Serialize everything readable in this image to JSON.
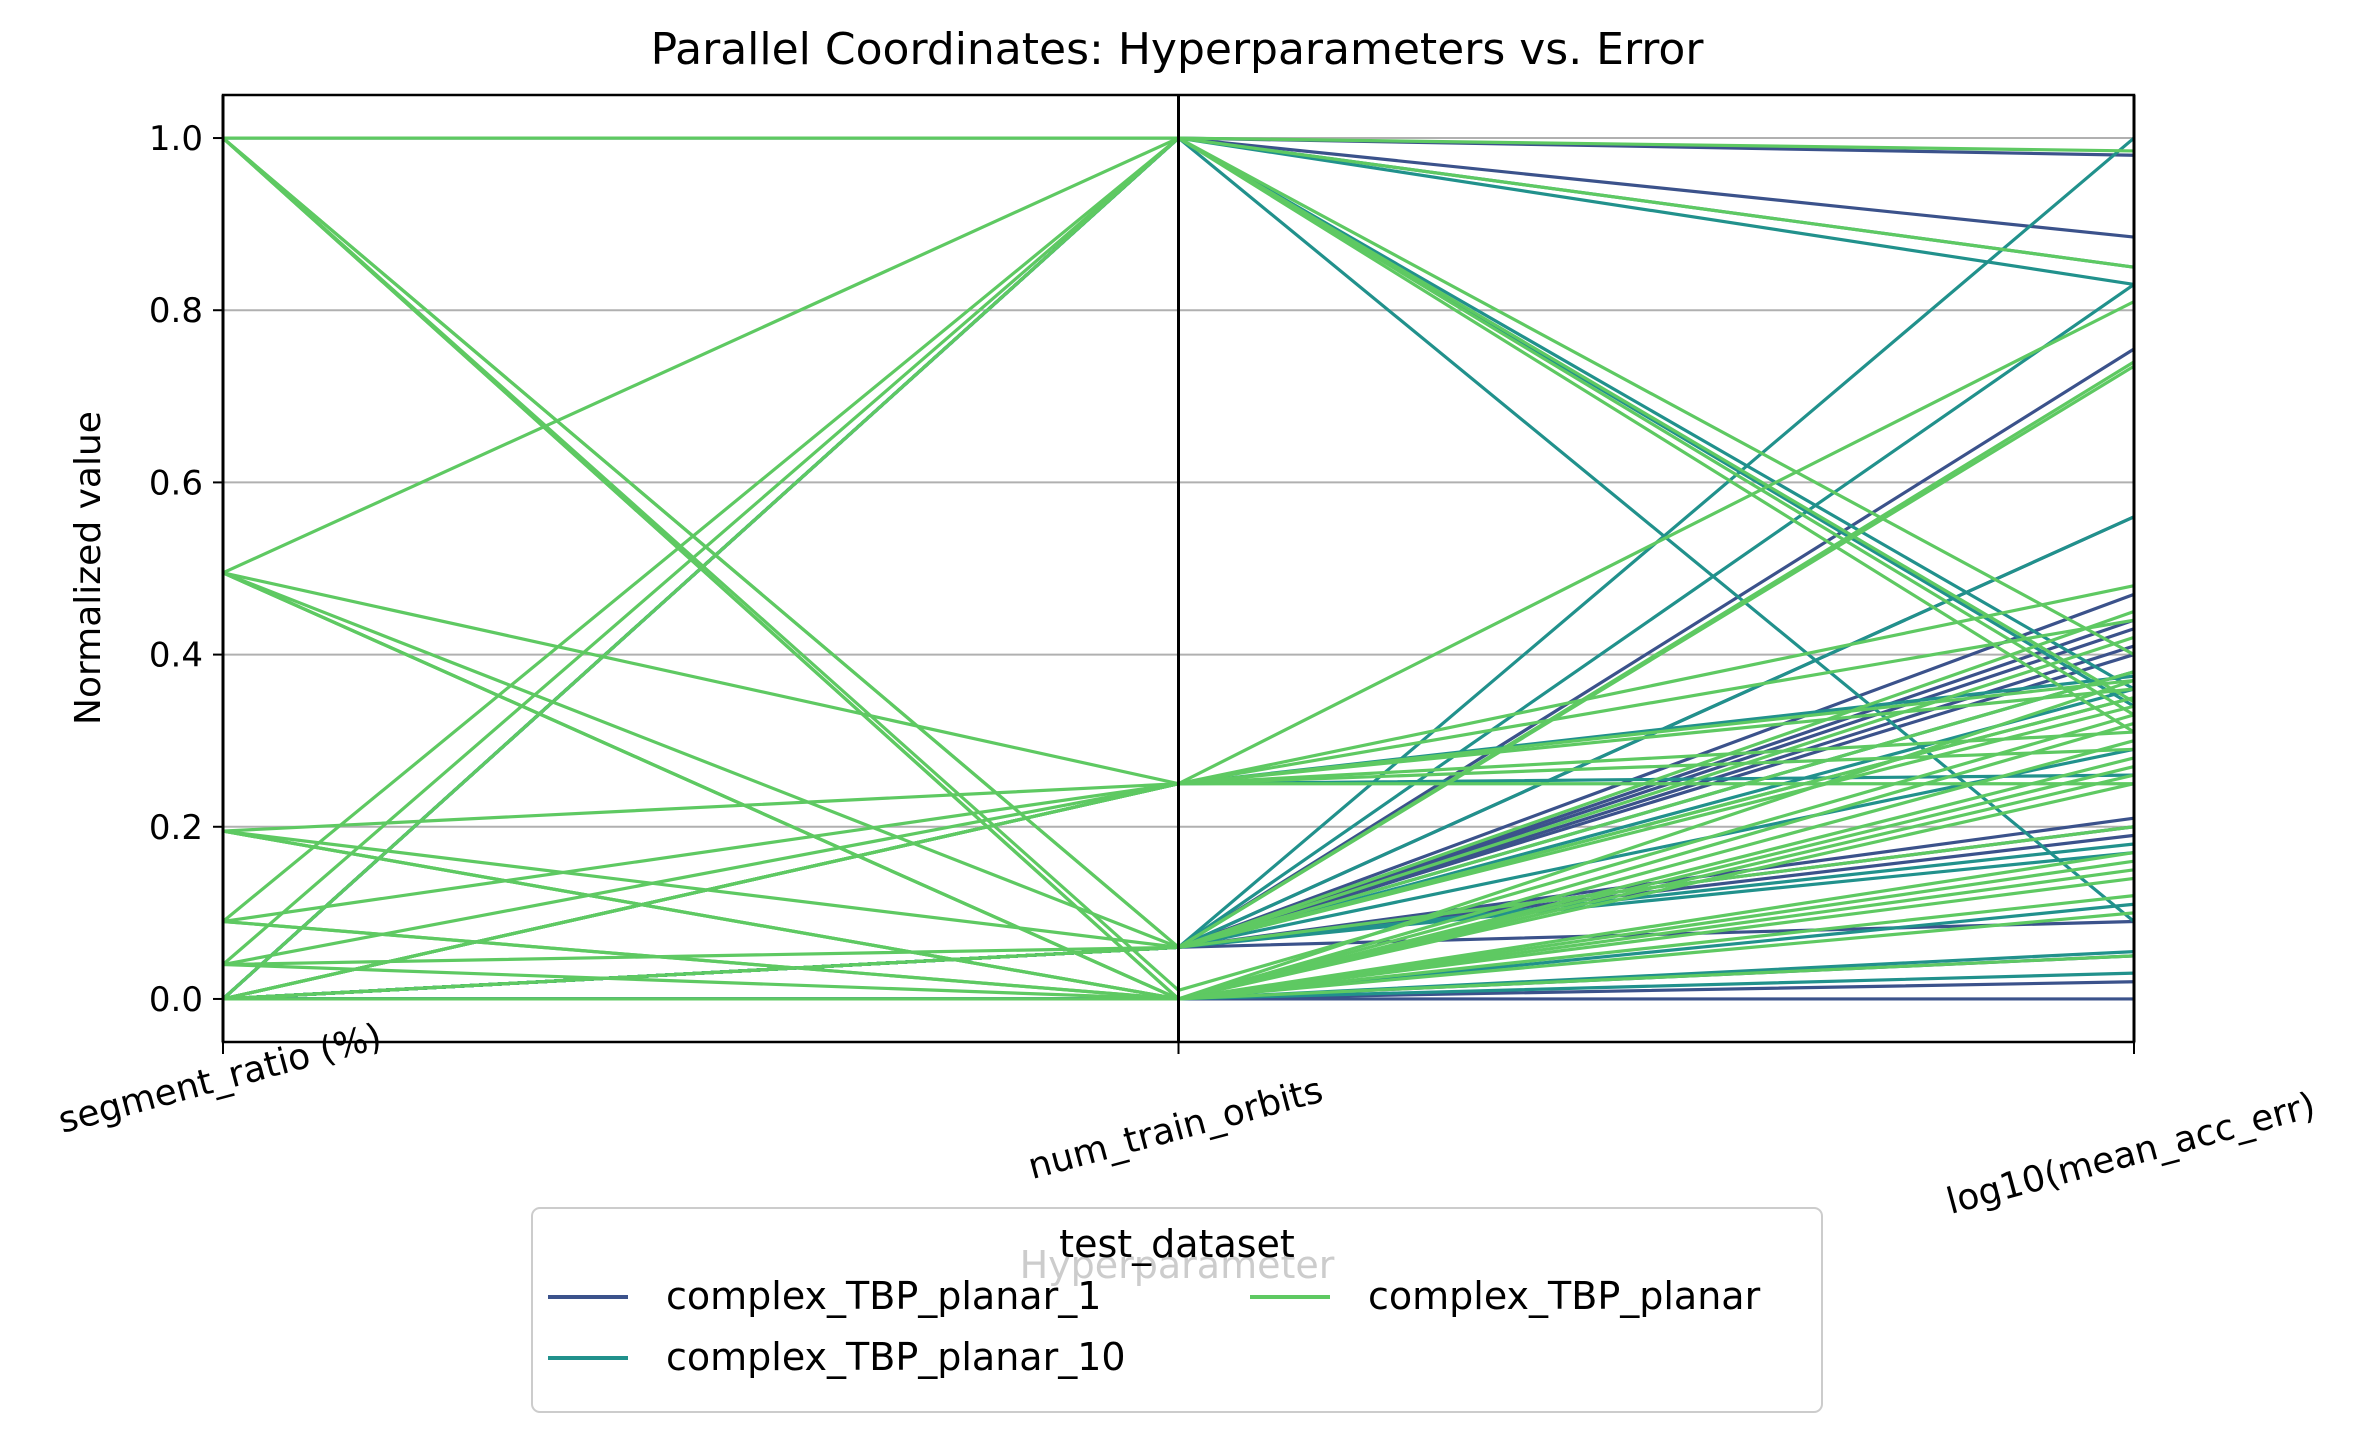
{
  "chart_data": {
    "type": "parallel-coordinates",
    "title": "Parallel Coordinates: Hyperparameters vs. Error",
    "xlabel": "Hyperparameter",
    "ylabel": "Normalized value",
    "ylim": [
      -0.05,
      1.05
    ],
    "yticks": [
      "0.0",
      "0.2",
      "0.4",
      "0.6",
      "0.8",
      "1.0"
    ],
    "grid": "horizontal",
    "axes": [
      "segment_ratio (%)",
      "num_train_orbits",
      "log10(mean_acc_err)"
    ],
    "legend": {
      "title": "test_dataset",
      "placement": "bottom-center",
      "entries": [
        "complex_TBP_planar_1",
        "complex_TBP_planar_10",
        "complex_TBP_planar"
      ]
    },
    "series": [
      {
        "name": "complex_TBP_planar_1",
        "color": "#3b528b",
        "lines": [
          [
            1.0,
            1.0,
            0.885
          ],
          [
            0.0,
            1.0,
            0.98
          ],
          [
            0.0,
            0.06,
            0.755
          ],
          [
            0.0,
            0.06,
            0.56
          ],
          [
            0.0,
            0.06,
            0.47
          ],
          [
            0.0,
            0.06,
            0.44
          ],
          [
            0.0,
            0.06,
            0.43
          ],
          [
            0.0,
            0.06,
            0.41
          ],
          [
            0.0,
            0.06,
            0.4
          ],
          [
            0.0,
            0.06,
            0.21
          ],
          [
            0.0,
            0.06,
            0.2
          ],
          [
            0.0,
            0.06,
            0.19
          ],
          [
            0.0,
            0.06,
            0.09
          ],
          [
            0.0,
            0.0,
            0.05
          ],
          [
            0.0,
            0.0,
            0.02
          ],
          [
            0.0,
            0.0,
            0.0
          ]
        ]
      },
      {
        "name": "complex_TBP_planar_10",
        "color": "#21918c",
        "lines": [
          [
            0.0,
            1.0,
            0.85
          ],
          [
            0.0,
            1.0,
            0.83
          ],
          [
            0.0,
            1.0,
            0.36
          ],
          [
            0.0,
            1.0,
            0.34
          ],
          [
            0.0,
            1.0,
            0.09
          ],
          [
            0.0,
            0.25,
            0.375
          ],
          [
            0.0,
            0.25,
            0.26
          ],
          [
            0.0,
            0.06,
            1.0
          ],
          [
            0.0,
            0.06,
            0.83
          ],
          [
            0.0,
            0.06,
            0.56
          ],
          [
            0.0,
            0.06,
            0.38
          ],
          [
            0.0,
            0.06,
            0.36
          ],
          [
            0.0,
            0.06,
            0.29
          ],
          [
            0.0,
            0.06,
            0.18
          ],
          [
            0.0,
            0.06,
            0.17
          ],
          [
            0.0,
            0.0,
            0.11
          ],
          [
            0.0,
            0.0,
            0.055
          ],
          [
            0.0,
            0.0,
            0.03
          ]
        ]
      },
      {
        "name": "complex_TBP_planar",
        "color": "#5ec962",
        "lines": [
          [
            1.0,
            1.0,
            0.985
          ],
          [
            1.0,
            1.0,
            0.85
          ],
          [
            1.0,
            0.06,
            0.735
          ],
          [
            1.0,
            0.06,
            0.38
          ],
          [
            1.0,
            0.01,
            0.33
          ],
          [
            1.0,
            0.0,
            0.3
          ],
          [
            1.0,
            0.0,
            0.28
          ],
          [
            1.0,
            0.0,
            0.25
          ],
          [
            0.495,
            1.0,
            0.4
          ],
          [
            0.495,
            0.25,
            0.48
          ],
          [
            0.495,
            0.06,
            0.35
          ],
          [
            0.495,
            0.0,
            0.32
          ],
          [
            0.495,
            0.0,
            0.26
          ],
          [
            0.495,
            0.0,
            0.15
          ],
          [
            0.195,
            0.25,
            0.31
          ],
          [
            0.195,
            0.06,
            0.34
          ],
          [
            0.195,
            0.0,
            0.27
          ],
          [
            0.195,
            0.0,
            0.17
          ],
          [
            0.195,
            0.0,
            0.16
          ],
          [
            0.09,
            1.0,
            0.345
          ],
          [
            0.09,
            0.25,
            0.44
          ],
          [
            0.09,
            0.0,
            0.37
          ],
          [
            0.09,
            0.0,
            0.1
          ],
          [
            0.04,
            1.0,
            0.33
          ],
          [
            0.04,
            0.25,
            0.25
          ],
          [
            0.04,
            0.06,
            0.45
          ],
          [
            0.04,
            0.0,
            0.14
          ],
          [
            0.0,
            1.0,
            0.31
          ],
          [
            0.0,
            0.25,
            0.81
          ],
          [
            0.0,
            0.25,
            0.37
          ],
          [
            0.0,
            0.25,
            0.36
          ],
          [
            0.0,
            0.25,
            0.29
          ],
          [
            0.0,
            0.06,
            0.74
          ],
          [
            0.0,
            0.06,
            0.42
          ],
          [
            0.0,
            0.06,
            0.35
          ],
          [
            0.0,
            0.06,
            0.2
          ],
          [
            0.0,
            0.0,
            0.12
          ],
          [
            0.0,
            0.0,
            0.05
          ]
        ]
      }
    ]
  }
}
